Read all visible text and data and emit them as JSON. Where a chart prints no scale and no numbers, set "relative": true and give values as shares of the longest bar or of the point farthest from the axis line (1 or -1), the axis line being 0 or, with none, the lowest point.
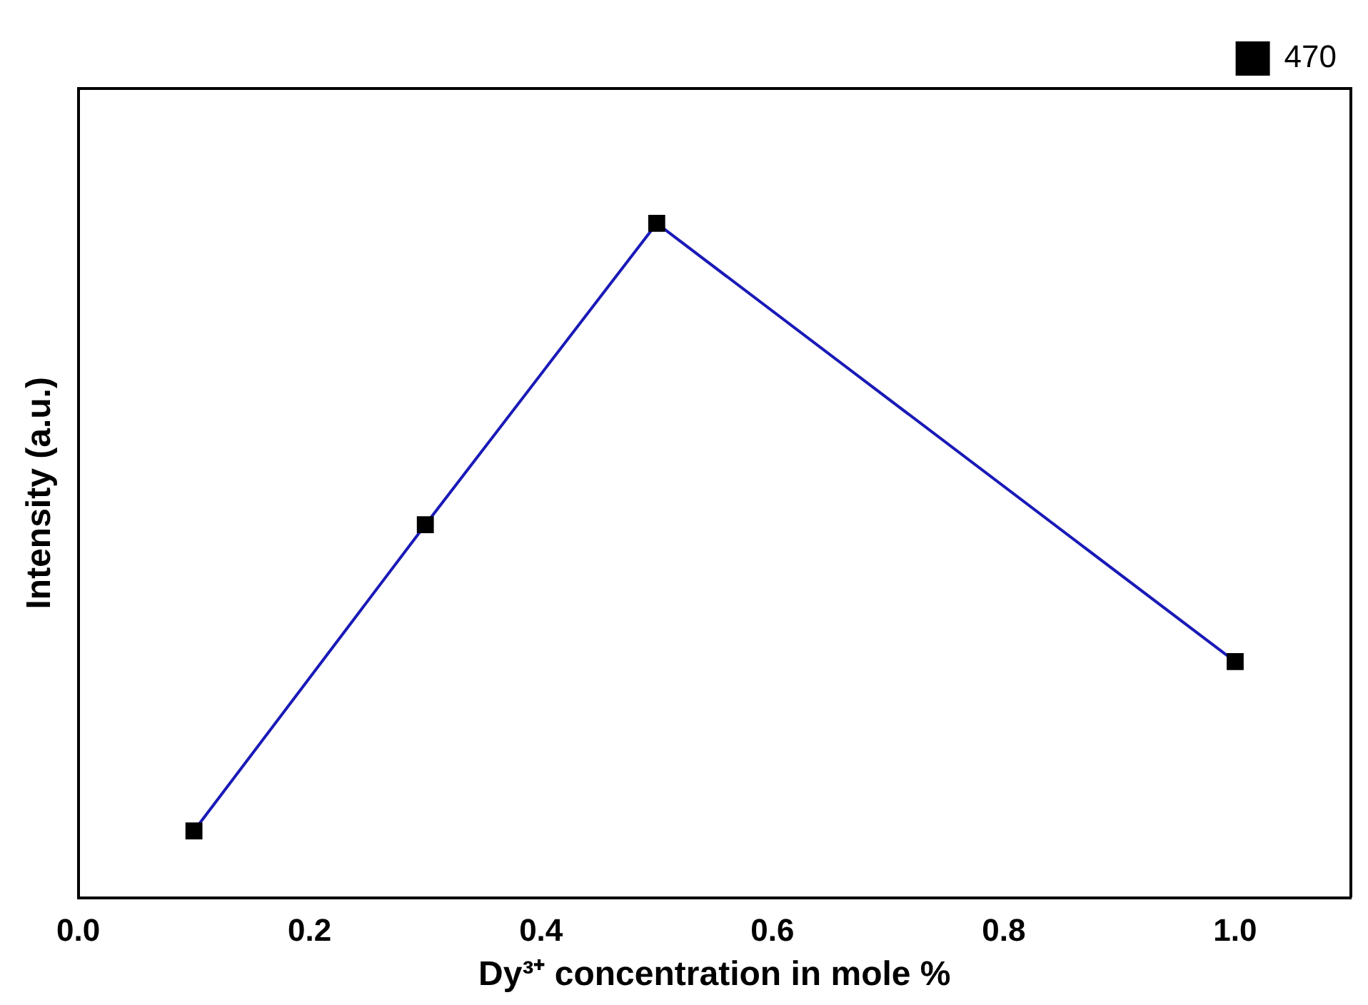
{
  "chart_data": {
    "type": "line",
    "xlabel": "Dy³⁺ concentration in mole %",
    "ylabel": "Intensity (a.u.)",
    "relative": true,
    "x": [
      0.1,
      0.3,
      0.5,
      1.0
    ],
    "series": [
      {
        "name": "470",
        "color": "#1a1ab8",
        "values": [
          0.099,
          0.553,
          1,
          0.35
        ]
      }
    ],
    "xlim": [
      0,
      1.1
    ],
    "xticks": [
      {
        "value": 0,
        "label": "0.0"
      },
      0.2,
      0.4,
      0.6,
      0.8,
      {
        "value": 1,
        "label": "1.0"
      }
    ],
    "marker": "square",
    "legend": "top right",
    "grid": false
  }
}
